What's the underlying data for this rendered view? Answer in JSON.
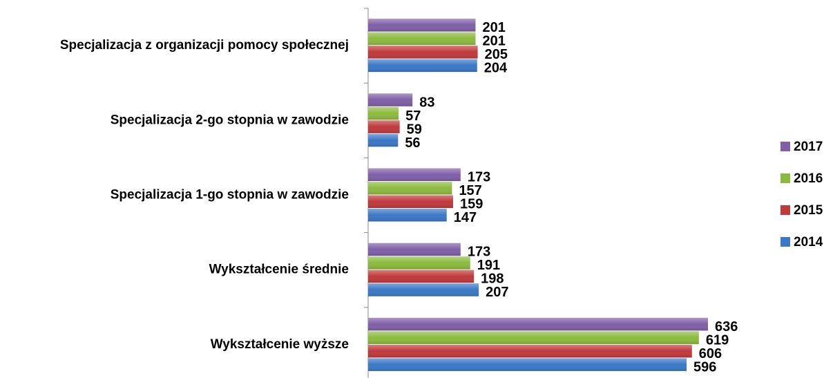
{
  "chart_data": {
    "type": "hbar",
    "categories": [
      "Specjalizacja z organizacji pomocy społecznej",
      "Specjalizacja 2-go stopnia w zawodzie",
      "Specjalizacja 1-go stopnia w zawodzie",
      "Wykształcenie średnie",
      "Wykształcenie wyższe"
    ],
    "series": [
      {
        "name": "2014",
        "color": "#3b78c6",
        "values": [
          204,
          56,
          147,
          207,
          596
        ]
      },
      {
        "name": "2015",
        "color": "#c0393b",
        "values": [
          205,
          59,
          159,
          198,
          606
        ]
      },
      {
        "name": "2016",
        "color": "#8cba3e",
        "values": [
          201,
          57,
          157,
          191,
          619
        ]
      },
      {
        "name": "2017",
        "color": "#7f5fa8",
        "values": [
          201,
          83,
          173,
          173,
          636
        ]
      }
    ],
    "legend": "right"
  }
}
